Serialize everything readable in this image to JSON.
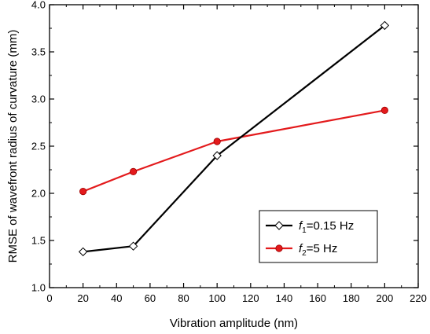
{
  "chart_data": {
    "type": "line",
    "xlabel": "Vibration amplitude (nm)",
    "ylabel": "RMSE of wavefront radius of curvature (mm)",
    "xlim": [
      0,
      220
    ],
    "ylim": [
      1.0,
      4.0
    ],
    "xticks": [
      0,
      20,
      40,
      60,
      80,
      100,
      120,
      140,
      160,
      180,
      200,
      220
    ],
    "yticks": [
      1.0,
      1.5,
      2.0,
      2.5,
      3.0,
      3.5,
      4.0
    ],
    "ytick_labels": [
      "1.0",
      "1.5",
      "2.0",
      "2.5",
      "3.0",
      "3.5",
      "4.0"
    ],
    "grid": false,
    "legend_position": "bottom-right",
    "series": [
      {
        "name_italic": "f",
        "name_sub": "1",
        "name_rest": "=0.15 Hz",
        "color": "#000000",
        "marker": "open-diamond",
        "x": [
          20,
          50,
          100,
          200
        ],
        "values": [
          1.38,
          1.44,
          2.4,
          3.78
        ]
      },
      {
        "name_italic": "f",
        "name_sub": "2",
        "name_rest": "=5 Hz",
        "color": "#e31a1c",
        "marker": "filled-circle",
        "x": [
          20,
          50,
          100,
          200
        ],
        "values": [
          2.02,
          2.23,
          2.55,
          2.88
        ]
      }
    ]
  }
}
